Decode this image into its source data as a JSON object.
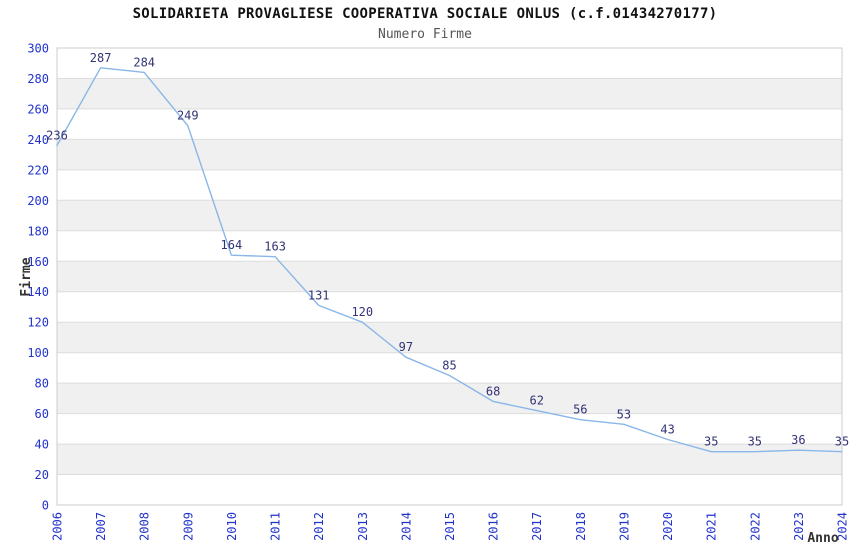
{
  "header": {
    "title": "SOLIDARIETA PROVAGLIESE COOPERATIVA SOCIALE ONLUS (c.f.01434270177)",
    "subtitle": "Numero Firme"
  },
  "chart_data": {
    "type": "line",
    "title": "Numero Firme",
    "categories": [
      "2006",
      "2007",
      "2008",
      "2009",
      "2010",
      "2011",
      "2012",
      "2013",
      "2014",
      "2015",
      "2016",
      "2017",
      "2018",
      "2019",
      "2020",
      "2021",
      "2022",
      "2023",
      "2024"
    ],
    "values": [
      236,
      287,
      284,
      249,
      164,
      163,
      131,
      120,
      97,
      85,
      68,
      62,
      56,
      53,
      43,
      35,
      35,
      36,
      35
    ],
    "xlabel": "Anno",
    "ylabel": "Firme",
    "ylim": [
      0,
      300
    ],
    "ytick_step": 20,
    "yticks": [
      0,
      20,
      40,
      60,
      80,
      100,
      120,
      140,
      160,
      180,
      200,
      220,
      240,
      260,
      280,
      300
    ],
    "grid": "horizontal-bands",
    "legend_position": "none",
    "point_labels_visible": true,
    "colors": {
      "line": "#8ab6e8",
      "point_label": "#333377",
      "tick_label": "#2233cc",
      "axis_title": "#333333",
      "band": "#f0f0f0",
      "grid": "#dddddd",
      "border": "#cccccc",
      "background": "#ffffff"
    }
  }
}
